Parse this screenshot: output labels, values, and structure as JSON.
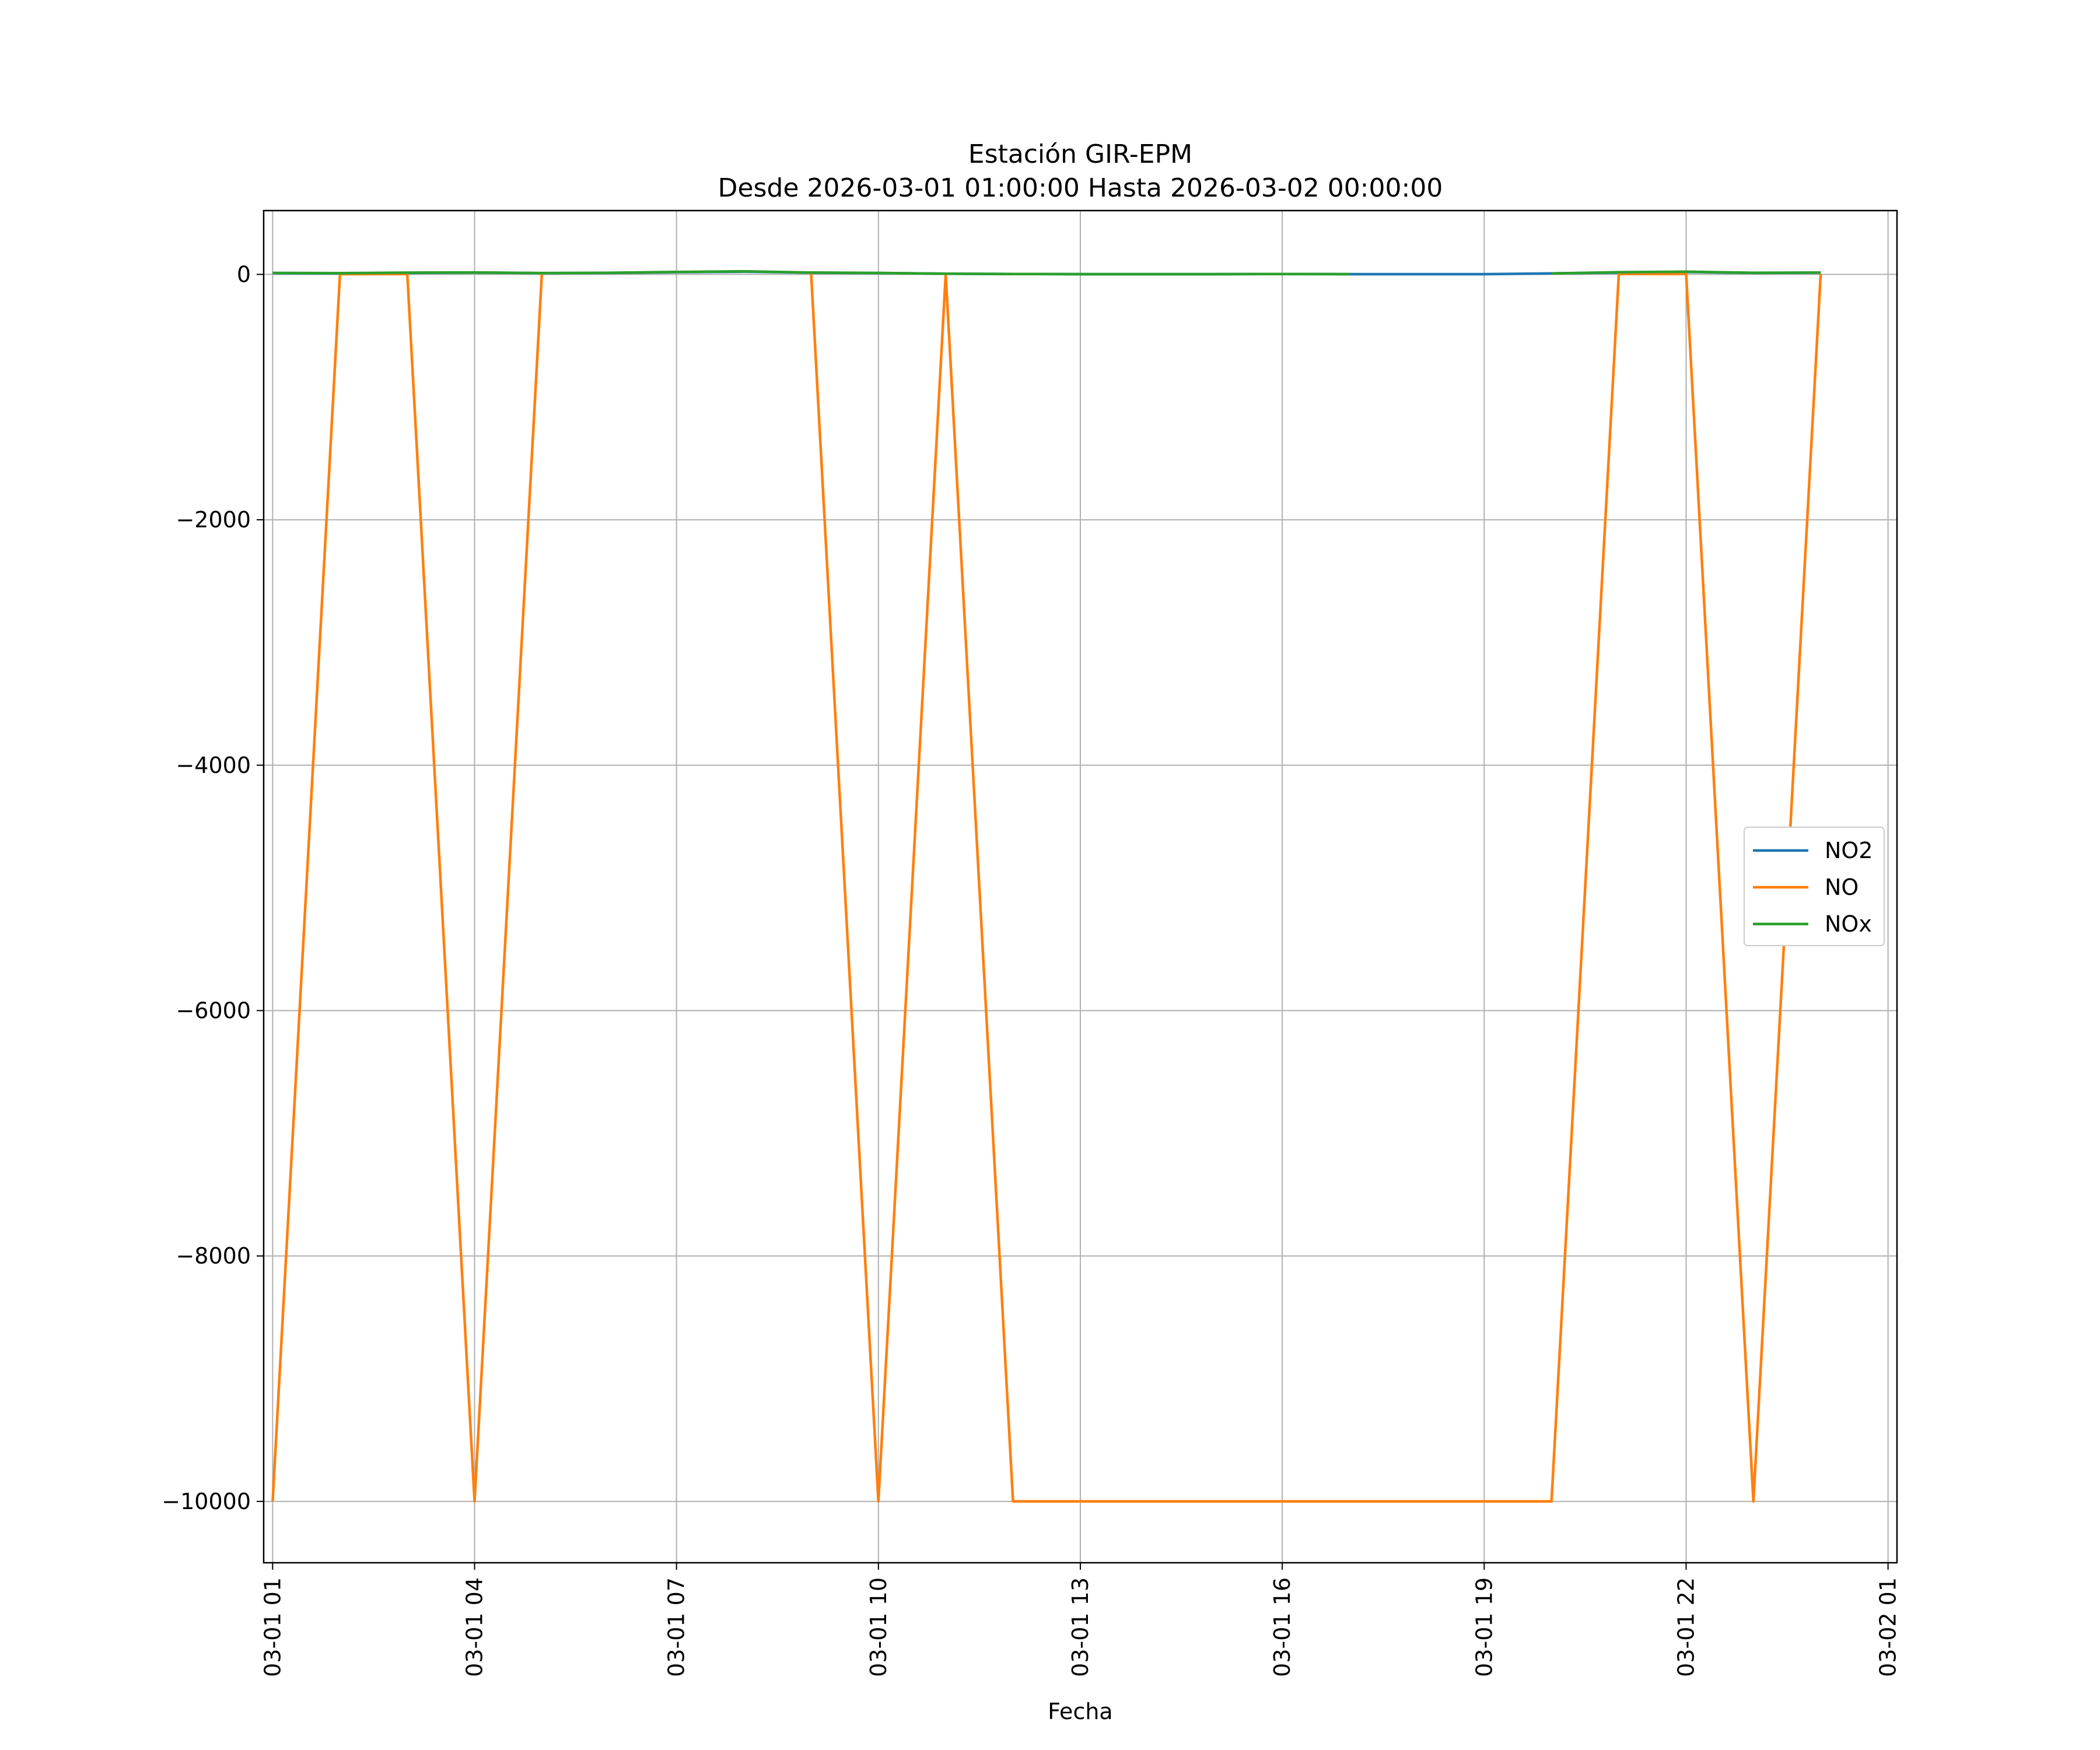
{
  "chart_data": {
    "type": "line",
    "title": "Estación GIR-EPM",
    "subtitle": "Desde 2026-03-01 01:00:00 Hasta 2026-03-02 00:00:00",
    "xlabel": "Fecha",
    "ylabel": "",
    "x": [
      "2026-03-01 01:00",
      "2026-03-01 02:00",
      "2026-03-01 03:00",
      "2026-03-01 04:00",
      "2026-03-01 05:00",
      "2026-03-01 06:00",
      "2026-03-01 07:00",
      "2026-03-01 08:00",
      "2026-03-01 09:00",
      "2026-03-01 10:00",
      "2026-03-01 11:00",
      "2026-03-01 12:00",
      "2026-03-01 13:00",
      "2026-03-01 14:00",
      "2026-03-01 15:00",
      "2026-03-01 16:00",
      "2026-03-01 17:00",
      "2026-03-01 18:00",
      "2026-03-01 19:00",
      "2026-03-01 20:00",
      "2026-03-01 21:00",
      "2026-03-01 22:00",
      "2026-03-01 23:00",
      "2026-03-02 00:00"
    ],
    "xlim": [
      "2026-03-01 00:52",
      "2026-03-02 01:08"
    ],
    "xtick_labels": [
      "03-01 01",
      "03-01 04",
      "03-01 07",
      "03-01 10",
      "03-01 13",
      "03-01 16",
      "03-01 19",
      "03-01 22",
      "03-02 01"
    ],
    "xtick_values": [
      "2026-03-01 01:00",
      "2026-03-01 04:00",
      "2026-03-01 07:00",
      "2026-03-01 10:00",
      "2026-03-01 13:00",
      "2026-03-01 16:00",
      "2026-03-01 19:00",
      "2026-03-01 22:00",
      "2026-03-02 01:00"
    ],
    "ylim": [
      -10500,
      520
    ],
    "yticks": [
      0,
      -2000,
      -4000,
      -6000,
      -8000,
      -10000
    ],
    "ytick_labels": [
      "0",
      "−2000",
      "−4000",
      "−6000",
      "−8000",
      "−10000"
    ],
    "grid": true,
    "legend_position": "center-right",
    "series": [
      {
        "name": "NO2",
        "color": "#1f77b4",
        "values": [
          10,
          8,
          12,
          15,
          10,
          12,
          18,
          22,
          14,
          11,
          5,
          3,
          2,
          2,
          2,
          3,
          2,
          2,
          2,
          8,
          15,
          20,
          12,
          14
        ]
      },
      {
        "name": "NO",
        "color": "#ff7f0e",
        "values": [
          -10000,
          2,
          3,
          -10000,
          4,
          null,
          null,
          null,
          5,
          -10000,
          1,
          -10000,
          -10000,
          -10000,
          -10000,
          -10000,
          -10000,
          -10000,
          -10000,
          -10000,
          3,
          4,
          -10000,
          5
        ]
      },
      {
        "name": "NOx",
        "color": "#2ca02c",
        "values": [
          12,
          10,
          14,
          16,
          11,
          13,
          20,
          25,
          15,
          12,
          5,
          3,
          2,
          2,
          2,
          3,
          2,
          null,
          null,
          8,
          18,
          22,
          13,
          15
        ]
      }
    ]
  }
}
